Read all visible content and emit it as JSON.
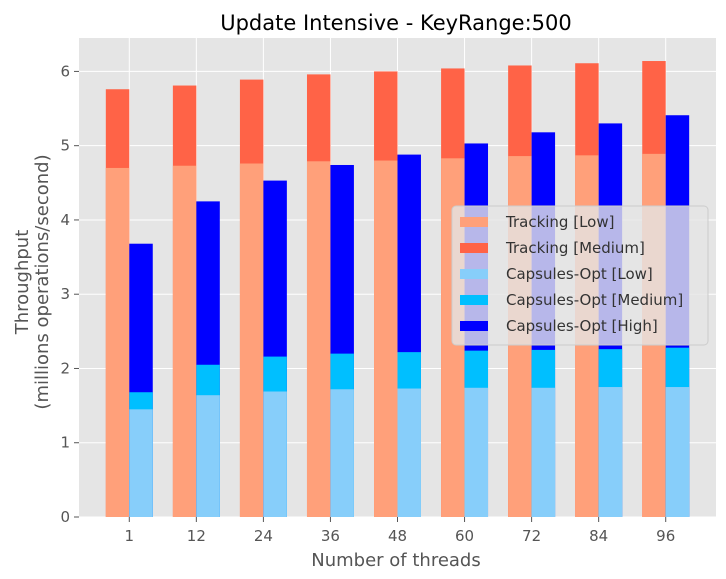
{
  "chart_data": {
    "type": "bar",
    "title": "Update Intensive - KeyRange:500",
    "xlabel": "Number of threads",
    "ylabel_line1": "Throughput",
    "ylabel_line2": "(millions operations/second)",
    "categories": [
      "1",
      "12",
      "24",
      "36",
      "48",
      "60",
      "72",
      "84",
      "96"
    ],
    "ylim": [
      0,
      6.45
    ],
    "yticks": [
      0,
      1,
      2,
      3,
      4,
      5,
      6
    ],
    "grid": true,
    "legend_position": "center-right",
    "groups": [
      {
        "name": "Tracking",
        "series": [
          {
            "name": "Tracking [Low]",
            "color": "#ffa07a",
            "values": [
              4.7,
              4.73,
              4.76,
              4.79,
              4.8,
              4.83,
              4.86,
              4.87,
              4.89
            ]
          },
          {
            "name": "Tracking [Medium]",
            "color": "#ff6347",
            "values": [
              5.76,
              5.81,
              5.89,
              5.96,
              6.0,
              6.04,
              6.08,
              6.11,
              6.14
            ]
          }
        ]
      },
      {
        "name": "Capsules-Opt",
        "series": [
          {
            "name": "Capsules-Opt [Low]",
            "color": "#87cefa",
            "values": [
              1.45,
              1.64,
              1.69,
              1.72,
              1.73,
              1.74,
              1.74,
              1.75,
              1.75
            ]
          },
          {
            "name": "Capsules-Opt [Medium]",
            "color": "#00bfff",
            "values": [
              1.68,
              2.05,
              2.16,
              2.2,
              2.22,
              2.24,
              2.25,
              2.26,
              2.28
            ]
          },
          {
            "name": "Capsules-Opt [High]",
            "color": "#0000ff",
            "values": [
              3.68,
              4.25,
              4.53,
              4.74,
              4.88,
              5.03,
              5.18,
              5.3,
              5.41
            ]
          }
        ]
      }
    ],
    "legend": [
      "Tracking [Low]",
      "Tracking [Medium]",
      "Capsules-Opt [Low]",
      "Capsules-Opt [Medium]",
      "Capsules-Opt [High]"
    ],
    "colors": {
      "plot_background": "#e5e5e5",
      "grid": "#ffffff",
      "tracking_low": "#ffa07a",
      "tracking_medium": "#ff6347",
      "capsules_low": "#87cefa",
      "capsules_medium": "#00bfff",
      "capsules_high": "#0000ff"
    }
  }
}
